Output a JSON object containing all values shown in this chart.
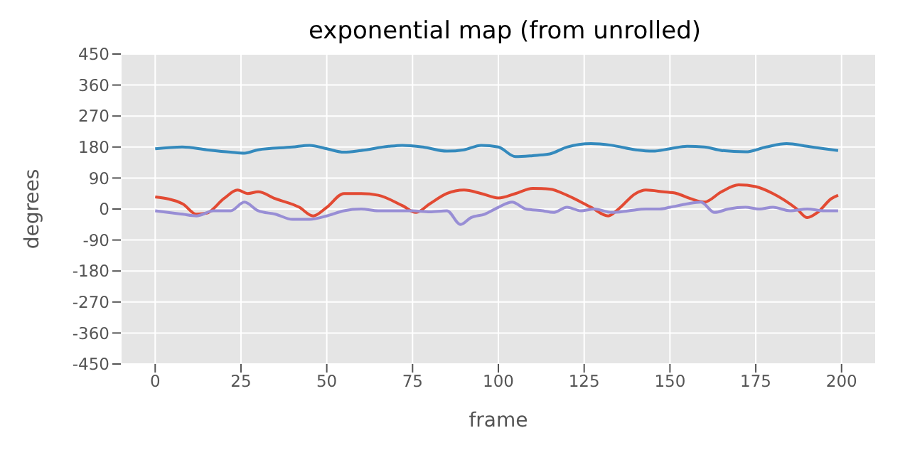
{
  "chart_data": {
    "type": "line",
    "title": "exponential map (from unrolled)",
    "xlabel": "frame",
    "ylabel": "degrees",
    "xlim": [
      -10,
      210
    ],
    "xticks": [
      0,
      25,
      50,
      75,
      100,
      125,
      150,
      175,
      200
    ],
    "ylim": [
      -450,
      450
    ],
    "yticks": [
      -450,
      -360,
      -270,
      -180,
      -90,
      0,
      90,
      180,
      270,
      360,
      450
    ],
    "grid": true,
    "legend": false,
    "marker": "none",
    "line_style": "solid",
    "series": [
      {
        "color": "#348abd",
        "x": [
          0,
          8,
          15,
          22,
          26,
          30,
          40,
          45,
          50,
          55,
          60,
          68,
          72,
          78,
          85,
          90,
          95,
          100,
          105,
          110,
          115,
          120,
          127,
          133,
          140,
          145,
          150,
          155,
          160,
          165,
          172,
          178,
          184,
          190,
          195,
          199
        ],
        "values": [
          175,
          180,
          172,
          165,
          162,
          172,
          180,
          185,
          175,
          165,
          170,
          182,
          185,
          180,
          168,
          172,
          185,
          180,
          152,
          155,
          160,
          180,
          190,
          185,
          172,
          168,
          175,
          182,
          180,
          170,
          166,
          180,
          190,
          182,
          175,
          170
        ]
      },
      {
        "color": "#e24a33",
        "x": [
          0,
          8,
          12,
          15,
          20,
          24,
          27,
          30,
          35,
          42,
          46,
          50,
          55,
          60,
          65,
          72,
          76,
          80,
          85,
          90,
          95,
          100,
          105,
          110,
          115,
          120,
          127,
          132,
          135,
          140,
          143,
          148,
          152,
          156,
          160,
          165,
          170,
          175,
          180,
          187,
          190,
          193,
          197,
          199
        ],
        "values": [
          35,
          15,
          -15,
          -12,
          30,
          55,
          45,
          50,
          30,
          5,
          -20,
          5,
          45,
          45,
          40,
          10,
          -10,
          15,
          45,
          55,
          45,
          32,
          45,
          60,
          58,
          40,
          5,
          -20,
          0,
          45,
          55,
          50,
          45,
          30,
          20,
          50,
          70,
          65,
          45,
          0,
          -25,
          -10,
          30,
          40
        ]
      },
      {
        "color": "#988ed5",
        "x": [
          0,
          8,
          12,
          17,
          22,
          26,
          30,
          35,
          40,
          45,
          50,
          55,
          60,
          65,
          70,
          75,
          80,
          85,
          89,
          92,
          96,
          100,
          104,
          108,
          113,
          116,
          120,
          124,
          128,
          133,
          138,
          143,
          147,
          150,
          155,
          159,
          163,
          167,
          172,
          176,
          180,
          185,
          190,
          195,
          199
        ],
        "values": [
          -5,
          -15,
          -20,
          -5,
          -5,
          20,
          -5,
          -15,
          -30,
          -30,
          -20,
          -5,
          0,
          -5,
          -5,
          -5,
          -8,
          -5,
          -45,
          -25,
          -15,
          5,
          20,
          0,
          -5,
          -10,
          5,
          -5,
          0,
          -10,
          -5,
          0,
          0,
          5,
          15,
          20,
          -10,
          0,
          5,
          0,
          5,
          -5,
          0,
          -5,
          -5
        ]
      }
    ]
  }
}
